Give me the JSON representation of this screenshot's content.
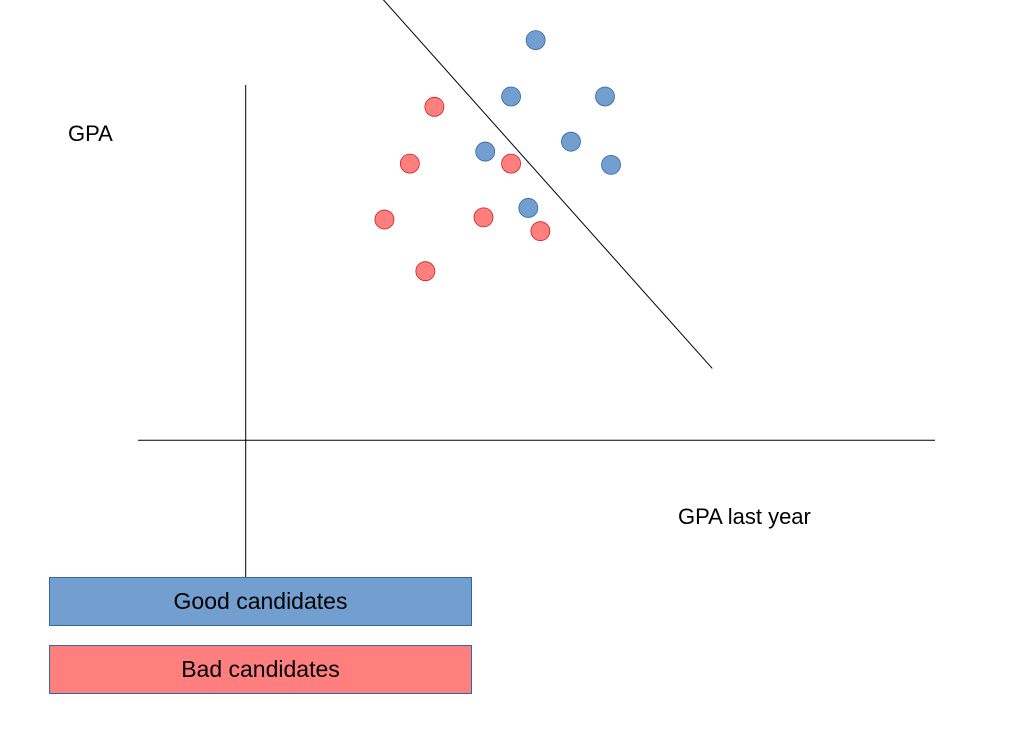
{
  "chart_data": {
    "type": "scatter",
    "title": "",
    "xlabel": "GPA last year",
    "ylabel": "GPA",
    "grid": false,
    "legend_placement": "bottom-left",
    "series": [
      {
        "name": "Good candidates",
        "color": "#729fcf",
        "x": [
          6.73,
          6.16,
          5.56,
          7.55,
          8.34,
          8.48,
          6.56
        ],
        "y": [
          9.3,
          7.99,
          6.71,
          6.94,
          7.99,
          6.4,
          5.4
        ]
      },
      {
        "name": "Bad candidates",
        "color": "#ff7f7f",
        "x": [
          4.38,
          3.81,
          3.22,
          4.17,
          5.52,
          6.16,
          6.84
        ],
        "y": [
          7.75,
          6.43,
          5.13,
          3.93,
          5.18,
          6.43,
          4.86
        ]
      }
    ],
    "decision_boundary": {
      "from": {
        "x": 2.56,
        "y": 10.95
      },
      "to": {
        "x": 10.83,
        "y": 1.67
      }
    },
    "xlim": [
      -2.5,
      16.0
    ],
    "ylim": [
      -3.2,
      10.0
    ]
  },
  "legend": {
    "good_label": "Good candidates",
    "bad_label": "Bad candidates",
    "good_color": "#729fcf",
    "bad_color": "#ff7f7f"
  }
}
